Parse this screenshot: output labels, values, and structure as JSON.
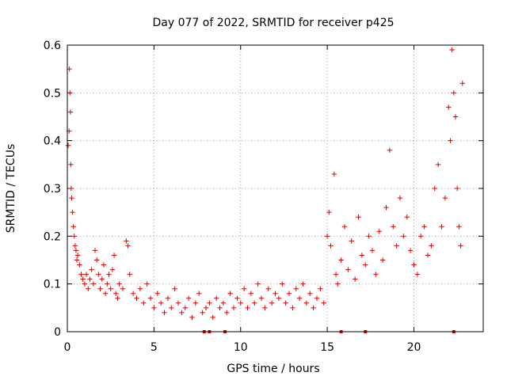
{
  "chart_data": {
    "type": "scatter",
    "title": "Day 077 of 2022, SRMTID for receiver p425",
    "xlabel": "GPS time / hours",
    "ylabel": "SRMTID / TECUs",
    "xlim": [
      0,
      24
    ],
    "ylim": [
      0,
      0.6
    ],
    "xticks": [
      0,
      5,
      10,
      15,
      20
    ],
    "xtick_labels": [
      "0",
      "5",
      "10",
      "15",
      "20"
    ],
    "yticks": [
      0,
      0.1,
      0.2,
      0.3,
      0.4,
      0.5,
      0.6
    ],
    "ytick_labels": [
      "0",
      "0.1",
      "0.2",
      "0.3",
      "0.4",
      "0.5",
      "0.6"
    ],
    "grid": true,
    "marker": "+",
    "color": "#e00000",
    "series": [
      {
        "name": "SRMTID",
        "points": [
          [
            0.05,
            0.39
          ],
          [
            0.1,
            0.42
          ],
          [
            0.12,
            0.55
          ],
          [
            0.15,
            0.5
          ],
          [
            0.18,
            0.46
          ],
          [
            0.2,
            0.35
          ],
          [
            0.22,
            0.3
          ],
          [
            0.25,
            0.28
          ],
          [
            0.3,
            0.25
          ],
          [
            0.35,
            0.22
          ],
          [
            0.4,
            0.2
          ],
          [
            0.45,
            0.18
          ],
          [
            0.5,
            0.17
          ],
          [
            0.55,
            0.15
          ],
          [
            0.6,
            0.16
          ],
          [
            0.7,
            0.14
          ],
          [
            0.8,
            0.12
          ],
          [
            0.9,
            0.11
          ],
          [
            1.0,
            0.1
          ],
          [
            1.1,
            0.12
          ],
          [
            1.2,
            0.09
          ],
          [
            1.3,
            0.11
          ],
          [
            1.4,
            0.13
          ],
          [
            1.5,
            0.1
          ],
          [
            1.6,
            0.17
          ],
          [
            1.7,
            0.15
          ],
          [
            1.8,
            0.12
          ],
          [
            1.9,
            0.09
          ],
          [
            2.0,
            0.11
          ],
          [
            2.1,
            0.14
          ],
          [
            2.2,
            0.08
          ],
          [
            2.3,
            0.1
          ],
          [
            2.4,
            0.12
          ],
          [
            2.5,
            0.09
          ],
          [
            2.6,
            0.13
          ],
          [
            2.7,
            0.16
          ],
          [
            2.8,
            0.08
          ],
          [
            2.9,
            0.07
          ],
          [
            3.0,
            0.1
          ],
          [
            3.2,
            0.09
          ],
          [
            3.4,
            0.19
          ],
          [
            3.5,
            0.18
          ],
          [
            3.6,
            0.12
          ],
          [
            3.8,
            0.08
          ],
          [
            4.0,
            0.07
          ],
          [
            4.2,
            0.09
          ],
          [
            4.4,
            0.06
          ],
          [
            4.6,
            0.1
          ],
          [
            4.8,
            0.07
          ],
          [
            5.0,
            0.05
          ],
          [
            5.2,
            0.08
          ],
          [
            5.4,
            0.06
          ],
          [
            5.6,
            0.04
          ],
          [
            5.8,
            0.07
          ],
          [
            6.0,
            0.05
          ],
          [
            6.2,
            0.09
          ],
          [
            6.4,
            0.06
          ],
          [
            6.6,
            0.04
          ],
          [
            6.8,
            0.05
          ],
          [
            7.0,
            0.07
          ],
          [
            7.2,
            0.03
          ],
          [
            7.4,
            0.06
          ],
          [
            7.6,
            0.08
          ],
          [
            7.8,
            0.04
          ],
          [
            8.0,
            0.05
          ],
          [
            8.2,
            0.06
          ],
          [
            8.4,
            0.03
          ],
          [
            8.6,
            0.07
          ],
          [
            8.8,
            0.05
          ],
          [
            9.0,
            0.06
          ],
          [
            9.2,
            0.04
          ],
          [
            9.4,
            0.08
          ],
          [
            9.6,
            0.05
          ],
          [
            9.8,
            0.07
          ],
          [
            10.0,
            0.06
          ],
          [
            10.2,
            0.09
          ],
          [
            10.4,
            0.05
          ],
          [
            10.6,
            0.08
          ],
          [
            10.8,
            0.06
          ],
          [
            11.0,
            0.1
          ],
          [
            11.2,
            0.07
          ],
          [
            11.4,
            0.05
          ],
          [
            11.6,
            0.09
          ],
          [
            11.8,
            0.06
          ],
          [
            12.0,
            0.08
          ],
          [
            12.2,
            0.07
          ],
          [
            12.4,
            0.1
          ],
          [
            12.6,
            0.06
          ],
          [
            12.8,
            0.08
          ],
          [
            13.0,
            0.05
          ],
          [
            13.2,
            0.09
          ],
          [
            13.4,
            0.07
          ],
          [
            13.6,
            0.1
          ],
          [
            13.8,
            0.06
          ],
          [
            14.0,
            0.08
          ],
          [
            14.2,
            0.05
          ],
          [
            14.4,
            0.07
          ],
          [
            14.6,
            0.09
          ],
          [
            14.8,
            0.06
          ],
          [
            15.0,
            0.2
          ],
          [
            15.1,
            0.25
          ],
          [
            15.2,
            0.18
          ],
          [
            15.4,
            0.33
          ],
          [
            15.5,
            0.12
          ],
          [
            15.6,
            0.1
          ],
          [
            15.8,
            0.15
          ],
          [
            16.0,
            0.22
          ],
          [
            16.2,
            0.13
          ],
          [
            16.4,
            0.19
          ],
          [
            16.6,
            0.11
          ],
          [
            16.8,
            0.24
          ],
          [
            17.0,
            0.16
          ],
          [
            17.2,
            0.14
          ],
          [
            17.4,
            0.2
          ],
          [
            17.6,
            0.17
          ],
          [
            17.8,
            0.12
          ],
          [
            18.0,
            0.21
          ],
          [
            18.2,
            0.15
          ],
          [
            18.4,
            0.26
          ],
          [
            18.6,
            0.38
          ],
          [
            18.8,
            0.22
          ],
          [
            19.0,
            0.18
          ],
          [
            19.2,
            0.28
          ],
          [
            19.4,
            0.2
          ],
          [
            19.6,
            0.24
          ],
          [
            19.8,
            0.17
          ],
          [
            20.0,
            0.14
          ],
          [
            20.2,
            0.12
          ],
          [
            20.4,
            0.2
          ],
          [
            20.6,
            0.22
          ],
          [
            20.8,
            0.16
          ],
          [
            21.0,
            0.18
          ],
          [
            21.2,
            0.3
          ],
          [
            21.4,
            0.35
          ],
          [
            21.6,
            0.22
          ],
          [
            21.8,
            0.28
          ],
          [
            22.0,
            0.47
          ],
          [
            22.1,
            0.4
          ],
          [
            22.2,
            0.59
          ],
          [
            22.3,
            0.5
          ],
          [
            22.4,
            0.45
          ],
          [
            22.5,
            0.3
          ],
          [
            22.6,
            0.22
          ],
          [
            22.7,
            0.18
          ],
          [
            22.8,
            0.52
          ]
        ]
      }
    ],
    "baseline_markers_x": [
      7.9,
      8.2,
      9.1,
      15.8,
      17.2,
      22.3
    ]
  }
}
